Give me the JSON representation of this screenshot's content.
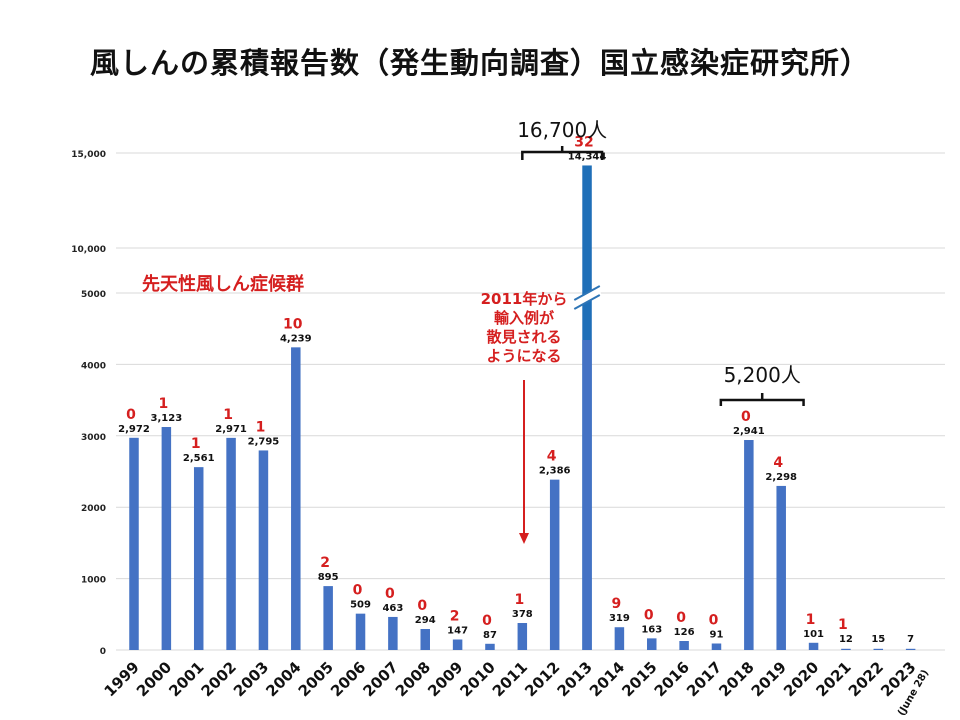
{
  "title": "風しんの累積報告数（発生動向調査）国立感染症研究所）",
  "chart_data": {
    "type": "bar",
    "categories": [
      "1999",
      "2000",
      "2001",
      "2002",
      "2003",
      "2004",
      "2005",
      "2006",
      "2007",
      "2008",
      "2009",
      "2010",
      "2011",
      "2012",
      "2013",
      "2014",
      "2015",
      "2016",
      "2017",
      "2018",
      "2019",
      "2020",
      "2021",
      "2022",
      "2023"
    ],
    "category_note": "(June 28)",
    "values": [
      2972,
      3123,
      2561,
      2971,
      2795,
      4239,
      895,
      509,
      463,
      294,
      147,
      87,
      378,
      2386,
      14344,
      319,
      163,
      126,
      91,
      2941,
      2298,
      101,
      12,
      15,
      7
    ],
    "value_labels": [
      "2,972",
      "3,123",
      "2,561",
      "2,971",
      "2,795",
      "4,239",
      "895",
      "509",
      "463",
      "294",
      "147",
      "87",
      "378",
      "2,386",
      "14,344",
      "319",
      "163",
      "126",
      "91",
      "2,941",
      "2,298",
      "101",
      "12",
      "15",
      "7"
    ],
    "crs_series": {
      "name": "先天性風しん症候群",
      "values": [
        "0",
        "1",
        "1",
        "1",
        "1",
        "10",
        "2",
        "0",
        "0",
        "0",
        "2",
        "0",
        "1",
        "4",
        "32",
        "9",
        "0",
        "0",
        "0",
        "0",
        "4",
        "1",
        "1",
        "",
        ""
      ]
    },
    "y_ticks": [
      "0",
      "1000",
      "2000",
      "3000",
      "4000",
      "5000"
    ],
    "y_ticks_upper": [
      "10,000",
      "15,000"
    ],
    "ylim": [
      0,
      15000
    ],
    "axis_break": [
      5000,
      10000
    ],
    "annotations": {
      "total_2012_2013": "16,700人",
      "total_2018_2019": "5,200人",
      "import_note": [
        "2011年から",
        "輸入例が",
        "散見される",
        "ようになる"
      ]
    },
    "colors": {
      "bar": "#4472c4",
      "bar_upper": "#1f6fb8",
      "crs_text": "#d51f1f",
      "grid": "#d9d9d9",
      "break_mark": "#2e75b6"
    }
  }
}
